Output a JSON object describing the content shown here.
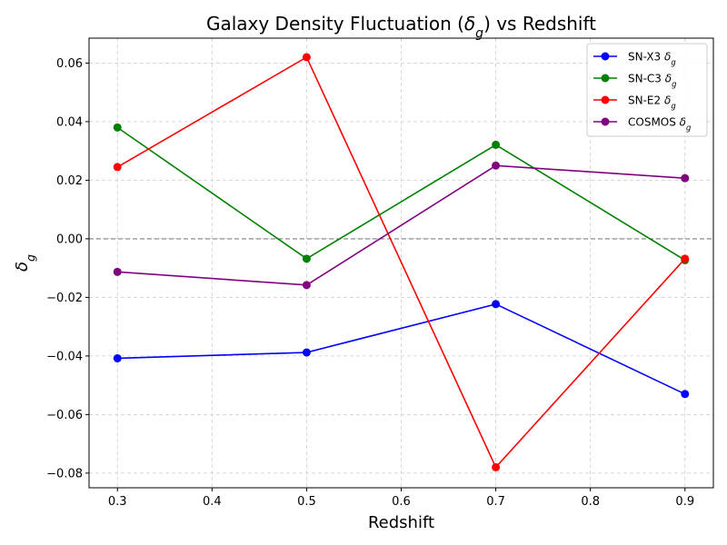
{
  "chart_data": {
    "type": "line",
    "title": "Galaxy Density Fluctuation (δg) vs Redshift",
    "xlabel": "Redshift",
    "ylabel": "δg",
    "x": [
      0.3,
      0.5,
      0.7,
      0.9
    ],
    "xlim": [
      0.27,
      0.93
    ],
    "ylim": [
      -0.085,
      0.0685
    ],
    "xticks": [
      "0.3",
      "0.4",
      "0.5",
      "0.6",
      "0.7",
      "0.8",
      "0.9"
    ],
    "yticks": [
      "−0.08",
      "−0.06",
      "−0.04",
      "−0.02",
      "0.00",
      "0.02",
      "0.04",
      "0.06"
    ],
    "grid": true,
    "reference_line": 0.0,
    "legend_position": "top-right",
    "series": [
      {
        "name": "SN-X3 δg",
        "color": "#0000ff",
        "values": [
          -0.0408,
          -0.0388,
          -0.0223,
          -0.053
        ]
      },
      {
        "name": "SN-C3 δg",
        "color": "#008000",
        "values": [
          0.038,
          -0.0068,
          0.0321,
          -0.0073
        ]
      },
      {
        "name": "SN-E2 δg",
        "color": "#ff0000",
        "values": [
          0.0245,
          0.062,
          -0.078,
          -0.0068
        ]
      },
      {
        "name": "COSMOS δg",
        "color": "#800080",
        "values": [
          -0.0113,
          -0.0158,
          0.025,
          0.0207
        ]
      }
    ]
  }
}
